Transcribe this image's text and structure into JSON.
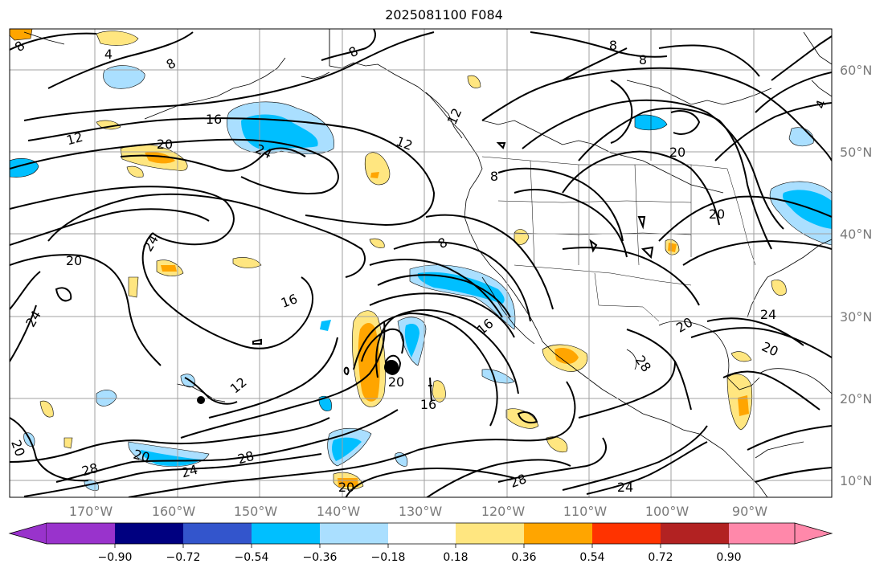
{
  "title": "2025081100 F084",
  "map": {
    "lat_labels": [
      "60°N",
      "50°N",
      "40°N",
      "30°N",
      "20°N",
      "10°N"
    ],
    "lon_labels": [
      "170°W",
      "160°W",
      "150°W",
      "140°W",
      "130°W",
      "120°W",
      "110°W",
      "100°W",
      "90°W"
    ],
    "contour_labels": [
      "8",
      "4",
      "8",
      "8",
      "8",
      "12",
      "16",
      "24",
      "20",
      "12",
      "12",
      "8",
      "8",
      "8",
      "20",
      "20",
      "16",
      "24",
      "16",
      "12",
      "20",
      "16",
      "28",
      "20",
      "24",
      "24",
      "20",
      "24",
      "20",
      "20",
      "28",
      "20",
      "28",
      "24",
      "28",
      "20",
      "4"
    ],
    "line_color": "#000000",
    "grid_color": "#a0a0a0"
  },
  "colorbar": {
    "ticks": [
      "−0.90",
      "−0.72",
      "−0.54",
      "−0.36",
      "−0.18",
      "0.18",
      "0.36",
      "0.54",
      "0.72",
      "0.90"
    ],
    "colors": [
      "#9933cc",
      "#000080",
      "#3355cc",
      "#00bfff",
      "#aadfff",
      "#ffffff",
      "#ffe680",
      "#ffa500",
      "#ff3300",
      "#b22222",
      "#ff88aa"
    ]
  }
}
